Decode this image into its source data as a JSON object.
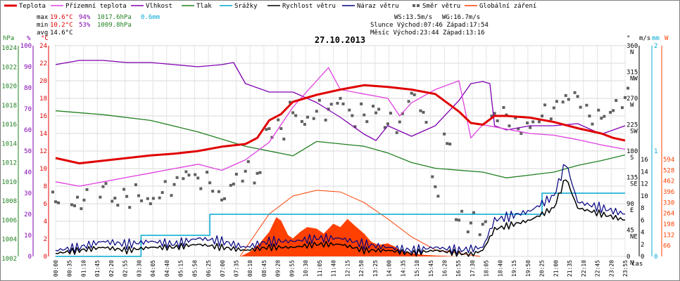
{
  "chart_data": {
    "type": "line",
    "title": "27.10.2013",
    "legend": [
      {
        "key": "temp",
        "label": "Teplota",
        "color": "#e00000"
      },
      {
        "key": "feels",
        "label": "Přízemní teplota",
        "color": "#e040e0"
      },
      {
        "key": "humidity",
        "label": "Vlhkost",
        "color": "#8000b0"
      },
      {
        "key": "pressure",
        "label": "Tlak",
        "color": "#208020"
      },
      {
        "key": "rain",
        "label": "Srážky",
        "color": "#00a8d0"
      },
      {
        "key": "wind",
        "label": "Rychlost větru",
        "color": "#000000"
      },
      {
        "key": "gust",
        "label": "Náraz větru",
        "color": "#000080"
      },
      {
        "key": "winddir",
        "label": "Směr větru",
        "color": "#606060"
      },
      {
        "key": "solar",
        "label": "Globální záření",
        "color": "#ff4000"
      }
    ],
    "stats": {
      "max_label": "max",
      "max_temp": "19.6°C",
      "max_hum": "94%",
      "max_press": "1017.6hPa",
      "rain_total": "0.6mm",
      "min_label": "min",
      "min_temp": "10.2°C",
      "min_hum": "53%",
      "min_press": "1009.8hPa",
      "avg_label": "avg",
      "avg_temp": "14.6°C",
      "ws": "WS:13.5m/s",
      "wg": "WG:16.7m/s",
      "sun": "Slunce Východ:07:46  Západ:17:54",
      "moon": "Měsíc  Východ:23:44  Západ:13:16"
    },
    "axes": {
      "hpa_unit": "hPa",
      "hpa_ticks": [
        "1024",
        "1022",
        "1020",
        "1018",
        "1016",
        "1014",
        "1012",
        "1010",
        "1008",
        "1006",
        "1004",
        "1002"
      ],
      "pct_unit": "%",
      "pct_ticks": [
        "100",
        "90",
        "80",
        "70",
        "60",
        "50",
        "40",
        "30",
        "20",
        "10",
        "0"
      ],
      "c_unit": "°C",
      "c_ticks": [
        "24",
        "22",
        "20",
        "18",
        "16",
        "14",
        "12",
        "10",
        "8",
        "6",
        "4",
        "2",
        "0"
      ],
      "dir_unit": "°",
      "dir_ticks": [
        {
          "deg": "360",
          "dir": "N"
        },
        {
          "deg": "315",
          "dir": "NW"
        },
        {
          "deg": "270",
          "dir": "W"
        },
        {
          "deg": "225",
          "dir": "SW"
        },
        {
          "deg": "180",
          "dir": "S"
        },
        {
          "deg": "135",
          "dir": "SE"
        },
        {
          "deg": "90",
          "dir": "E"
        },
        {
          "deg": "45",
          "dir": "NE"
        },
        {
          "deg": "0",
          "dir": "N"
        }
      ],
      "ms_unit": "m/s",
      "ms_ticks": [
        "16",
        "14",
        "12",
        "10",
        "8",
        "6",
        "4",
        "2",
        "0"
      ],
      "mm_unit": "mm",
      "mm_ticks": [
        "2",
        "1",
        "0"
      ],
      "w_unit": "W",
      "w_ticks": [
        "594",
        "528",
        "462",
        "396",
        "330",
        "264",
        "198",
        "132",
        "66"
      ],
      "x_unit": "čas",
      "x_ticks": [
        "00:00",
        "00:35",
        "01:10",
        "01:45",
        "02:20",
        "02:55",
        "03:30",
        "04:05",
        "04:40",
        "05:15",
        "05:50",
        "06:25",
        "07:00",
        "07:35",
        "08:10",
        "08:45",
        "09:20",
        "09:55",
        "10:30",
        "11:05",
        "11:40",
        "12:15",
        "12:50",
        "13:25",
        "14:00",
        "14:35",
        "15:10",
        "15:45",
        "16:20",
        "16:55",
        "17:30",
        "18:05",
        "18:40",
        "19:15",
        "19:50",
        "20:25",
        "21:00",
        "21:35",
        "22:10",
        "22:45",
        "23:20",
        "23:55"
      ]
    },
    "series_points": {
      "temp": [
        [
          0,
          11.2
        ],
        [
          1,
          10.6
        ],
        [
          2,
          10.9
        ],
        [
          3,
          11.2
        ],
        [
          4,
          11.5
        ],
        [
          5,
          11.7
        ],
        [
          6,
          12.0
        ],
        [
          7,
          12.5
        ],
        [
          8,
          12.8
        ],
        [
          8.5,
          13.5
        ],
        [
          9,
          15.5
        ],
        [
          9.5,
          16.2
        ],
        [
          10,
          17.6
        ],
        [
          11,
          18.4
        ],
        [
          12,
          19.0
        ],
        [
          13,
          19.5
        ],
        [
          14,
          19.3
        ],
        [
          15,
          19.0
        ],
        [
          16,
          18.5
        ],
        [
          17,
          16.5
        ],
        [
          17.5,
          15.2
        ],
        [
          18,
          15.0
        ],
        [
          18.5,
          16.0
        ],
        [
          19,
          16.0
        ],
        [
          20,
          15.8
        ],
        [
          21,
          15.3
        ],
        [
          22,
          14.6
        ],
        [
          23,
          14.0
        ],
        [
          23.5,
          13.5
        ],
        [
          24,
          13.2
        ]
      ],
      "feels": [
        [
          0,
          8.5
        ],
        [
          1,
          8.0
        ],
        [
          2,
          8.5
        ],
        [
          3,
          9.0
        ],
        [
          4,
          9.5
        ],
        [
          5,
          10.0
        ],
        [
          6,
          10.5
        ],
        [
          7,
          9.8
        ],
        [
          8,
          11.0
        ],
        [
          9,
          13.0
        ],
        [
          10,
          17.0
        ],
        [
          11,
          20.0
        ],
        [
          11.5,
          21.5
        ],
        [
          12,
          19.0
        ],
        [
          13,
          18.5
        ],
        [
          14,
          18.0
        ],
        [
          14.5,
          16.0
        ],
        [
          15,
          17.5
        ],
        [
          16,
          19.0
        ],
        [
          17,
          20.0
        ],
        [
          17.5,
          13.5
        ],
        [
          18,
          15.0
        ],
        [
          19,
          14.5
        ],
        [
          20,
          14.0
        ],
        [
          21,
          13.8
        ],
        [
          22,
          13.3
        ],
        [
          23,
          12.7
        ],
        [
          24,
          12.2
        ]
      ],
      "humidity": [
        [
          0,
          91
        ],
        [
          1,
          93
        ],
        [
          2,
          93
        ],
        [
          3,
          92
        ],
        [
          4,
          92
        ],
        [
          5,
          91
        ],
        [
          6,
          90
        ],
        [
          7,
          91
        ],
        [
          7.5,
          92
        ],
        [
          8,
          82
        ],
        [
          9,
          78
        ],
        [
          10,
          78
        ],
        [
          11,
          73
        ],
        [
          12,
          66
        ],
        [
          13,
          58
        ],
        [
          13.5,
          55
        ],
        [
          14,
          62
        ],
        [
          15,
          57
        ],
        [
          16,
          62
        ],
        [
          17,
          74
        ],
        [
          17.5,
          82
        ],
        [
          18,
          83
        ],
        [
          18.3,
          82
        ],
        [
          18.5,
          62
        ],
        [
          19,
          60
        ],
        [
          20,
          62
        ],
        [
          21,
          62
        ],
        [
          22,
          63
        ],
        [
          23,
          58
        ],
        [
          24,
          62
        ]
      ],
      "pressure": [
        [
          0,
          1017.2
        ],
        [
          2,
          1016.8
        ],
        [
          4,
          1016.2
        ],
        [
          6,
          1015.0
        ],
        [
          8,
          1013.5
        ],
        [
          10,
          1012.5
        ],
        [
          11,
          1014.0
        ],
        [
          13,
          1013.5
        ],
        [
          14,
          1012.8
        ],
        [
          15,
          1011.8
        ],
        [
          16,
          1011.2
        ],
        [
          17,
          1011.0
        ],
        [
          18,
          1010.8
        ],
        [
          19,
          1010.2
        ],
        [
          20,
          1010.5
        ],
        [
          21,
          1010.8
        ],
        [
          22,
          1011.5
        ],
        [
          23,
          1012.0
        ],
        [
          24,
          1012.6
        ]
      ],
      "rain": [
        [
          0,
          0
        ],
        [
          3.6,
          0
        ],
        [
          3.6,
          0.2
        ],
        [
          6.5,
          0.2
        ],
        [
          6.5,
          0.4
        ],
        [
          17.2,
          0.4
        ],
        [
          17.2,
          0.4
        ],
        [
          18,
          0.4
        ],
        [
          20.5,
          0.4
        ],
        [
          20.5,
          0.6
        ],
        [
          24,
          0.6
        ]
      ],
      "wind": [
        [
          0,
          0.5
        ],
        [
          1,
          1.0
        ],
        [
          2,
          1.5
        ],
        [
          3,
          1.0
        ],
        [
          4,
          1.5
        ],
        [
          5,
          1.5
        ],
        [
          6,
          2.0
        ],
        [
          7,
          1.5
        ],
        [
          8,
          1.0
        ],
        [
          9,
          1.5
        ],
        [
          10,
          1.5
        ],
        [
          11,
          2.0
        ],
        [
          12,
          2.0
        ],
        [
          13,
          1.0
        ],
        [
          14,
          1.0
        ],
        [
          15,
          0.5
        ],
        [
          16,
          1.0
        ],
        [
          17,
          0.5
        ],
        [
          17.5,
          0.3
        ],
        [
          18,
          1.0
        ],
        [
          18.5,
          4.5
        ],
        [
          19,
          5.0
        ],
        [
          20,
          6.0
        ],
        [
          21,
          8.0
        ],
        [
          21.5,
          13.0
        ],
        [
          22,
          8.0
        ],
        [
          23,
          7.0
        ],
        [
          24,
          6.0
        ]
      ],
      "gust": [
        [
          0,
          1.0
        ],
        [
          1,
          1.5
        ],
        [
          2,
          2.5
        ],
        [
          3,
          2.0
        ],
        [
          4,
          2.5
        ],
        [
          5,
          2.0
        ],
        [
          6,
          3.0
        ],
        [
          7,
          2.5
        ],
        [
          8,
          1.5
        ],
        [
          9,
          2.5
        ],
        [
          10,
          2.5
        ],
        [
          11,
          3.0
        ],
        [
          12,
          3.0
        ],
        [
          13,
          2.0
        ],
        [
          14,
          1.5
        ],
        [
          15,
          1.0
        ],
        [
          16,
          1.5
        ],
        [
          17,
          1.0
        ],
        [
          18,
          1.5
        ],
        [
          18.5,
          6.0
        ],
        [
          19,
          6.5
        ],
        [
          20,
          7.5
        ],
        [
          21,
          10.0
        ],
        [
          21.5,
          15.5
        ],
        [
          22,
          9.0
        ],
        [
          23,
          8.0
        ],
        [
          24,
          7.0
        ]
      ],
      "winddir": [
        [
          0,
          110
        ],
        [
          0.8,
          105
        ],
        [
          1.2,
          100
        ],
        [
          2.0,
          105
        ],
        [
          2.5,
          80
        ],
        [
          3.0,
          95
        ],
        [
          3.5,
          115
        ],
        [
          4.0,
          110
        ],
        [
          4.5,
          120
        ],
        [
          5.0,
          115
        ],
        [
          5.5,
          125
        ],
        [
          6.0,
          120
        ],
        [
          6.5,
          130
        ],
        [
          7.0,
          115
        ],
        [
          7.5,
          140
        ],
        [
          8.0,
          145
        ],
        [
          8.5,
          125
        ],
        [
          9.0,
          200
        ],
        [
          9.5,
          215
        ],
        [
          10.0,
          260
        ],
        [
          10.5,
          245
        ],
        [
          11.0,
          255
        ],
        [
          11.5,
          240
        ],
        [
          12.0,
          250
        ],
        [
          12.5,
          230
        ],
        [
          13.0,
          250
        ],
        [
          13.5,
          265
        ],
        [
          14.0,
          240
        ],
        [
          14.5,
          225
        ],
        [
          15.0,
          260
        ],
        [
          15.5,
          230
        ],
        [
          16.0,
          120
        ],
        [
          16.5,
          210
        ],
        [
          17.0,
          80
        ],
        [
          17.5,
          60
        ],
        [
          18.0,
          40
        ],
        [
          18.5,
          225
        ],
        [
          19.0,
          235
        ],
        [
          19.5,
          230
        ],
        [
          20.0,
          240
        ],
        [
          20.5,
          250
        ],
        [
          21.0,
          245
        ],
        [
          21.5,
          255
        ],
        [
          22.0,
          260
        ],
        [
          22.5,
          245
        ],
        [
          23.0,
          255
        ],
        [
          23.5,
          265
        ],
        [
          24.0,
          270
        ]
      ],
      "solar": [
        [
          7.8,
          0
        ],
        [
          8.2,
          30
        ],
        [
          8.6,
          80
        ],
        [
          9.0,
          150
        ],
        [
          9.3,
          240
        ],
        [
          9.5,
          220
        ],
        [
          9.8,
          130
        ],
        [
          10.0,
          110
        ],
        [
          10.3,
          150
        ],
        [
          10.6,
          180
        ],
        [
          11.0,
          170
        ],
        [
          11.3,
          140
        ],
        [
          11.7,
          200
        ],
        [
          12.0,
          180
        ],
        [
          12.3,
          230
        ],
        [
          12.6,
          190
        ],
        [
          13.0,
          140
        ],
        [
          13.3,
          90
        ],
        [
          13.6,
          70
        ],
        [
          14.0,
          80
        ],
        [
          14.3,
          60
        ],
        [
          14.6,
          30
        ],
        [
          15.0,
          20
        ],
        [
          15.5,
          10
        ],
        [
          16.0,
          5
        ],
        [
          17.0,
          0
        ]
      ],
      "sun_curve": [
        [
          7.77,
          0
        ],
        [
          9,
          260
        ],
        [
          10,
          370
        ],
        [
          11,
          405
        ],
        [
          12,
          395
        ],
        [
          13,
          330
        ],
        [
          14,
          230
        ],
        [
          15,
          120
        ],
        [
          16,
          40
        ],
        [
          17.9,
          0
        ]
      ]
    }
  }
}
